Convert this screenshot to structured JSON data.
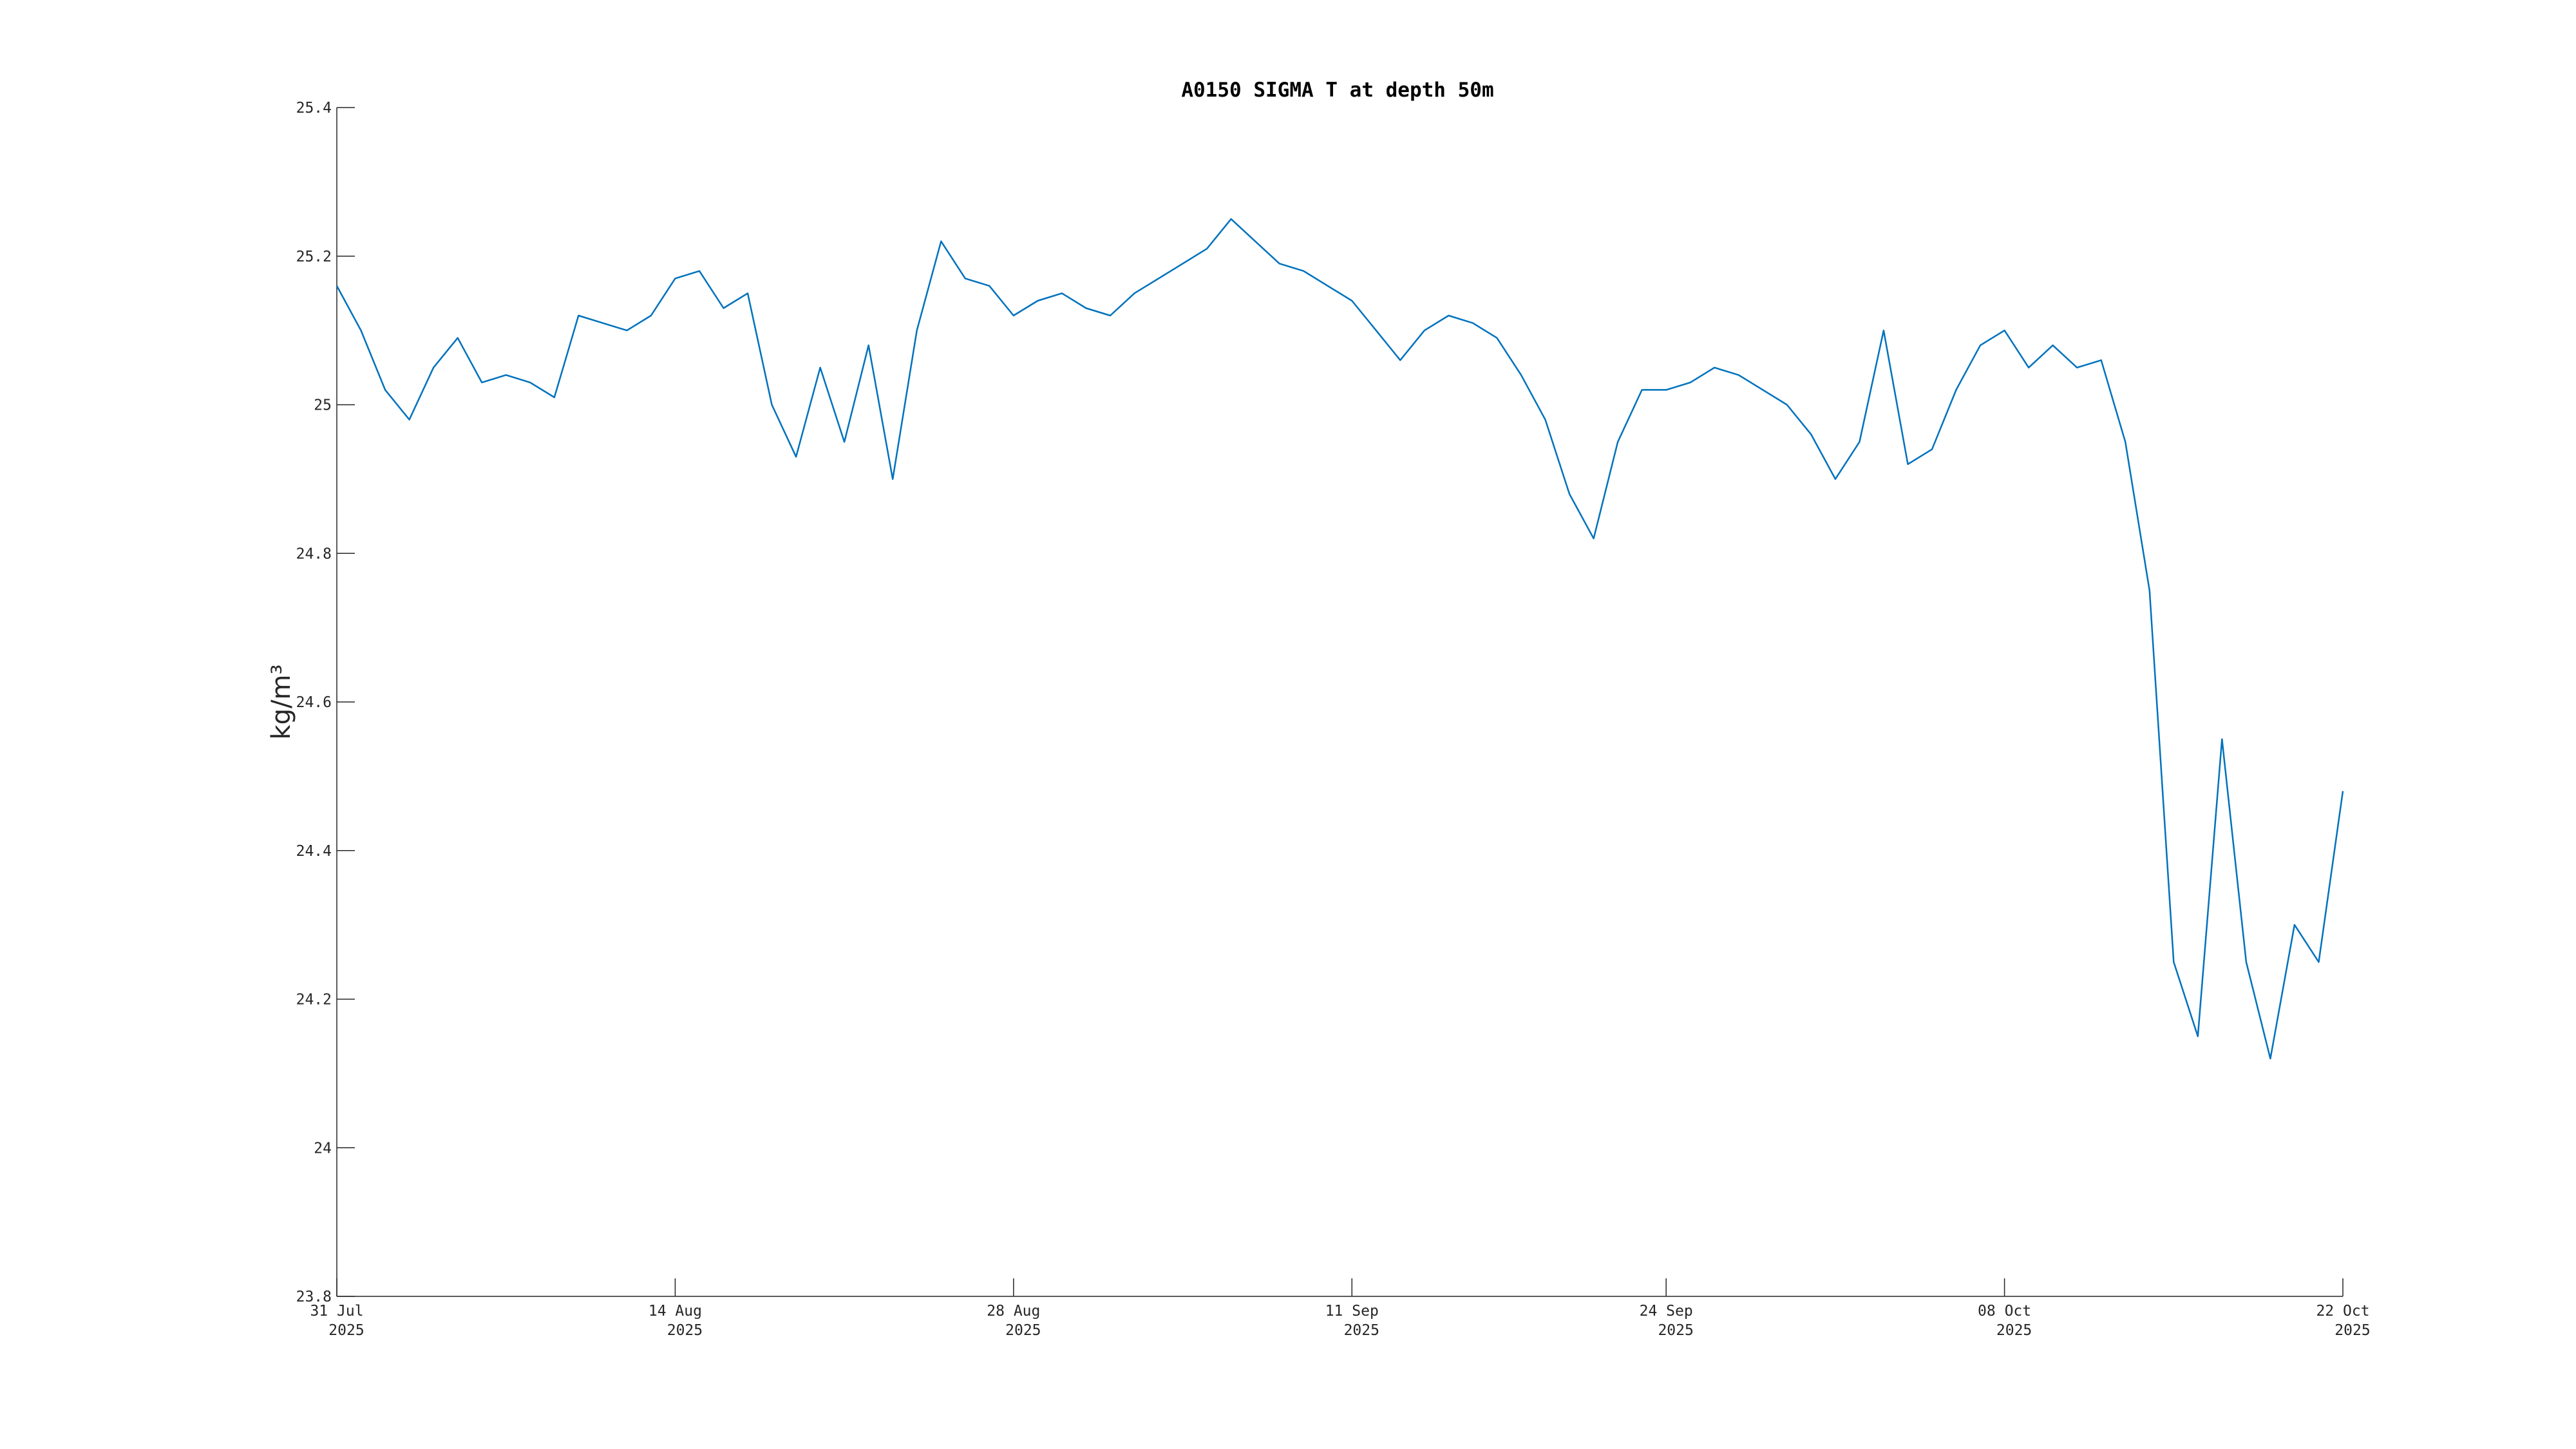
{
  "chart_data": {
    "type": "line",
    "title": "A0150 SIGMA T at depth 50m",
    "y_label": "kg/m³",
    "color": "#0072bd",
    "x": [
      "2025-07-31",
      "2025-08-01",
      "2025-08-02",
      "2025-08-03",
      "2025-08-04",
      "2025-08-05",
      "2025-08-06",
      "2025-08-07",
      "2025-08-08",
      "2025-08-09",
      "2025-08-10",
      "2025-08-11",
      "2025-08-12",
      "2025-08-13",
      "2025-08-14",
      "2025-08-15",
      "2025-08-16",
      "2025-08-17",
      "2025-08-18",
      "2025-08-19",
      "2025-08-20",
      "2025-08-21",
      "2025-08-22",
      "2025-08-23",
      "2025-08-24",
      "2025-08-25",
      "2025-08-26",
      "2025-08-27",
      "2025-08-28",
      "2025-08-29",
      "2025-08-30",
      "2025-08-31",
      "2025-09-01",
      "2025-09-02",
      "2025-09-03",
      "2025-09-04",
      "2025-09-05",
      "2025-09-06",
      "2025-09-07",
      "2025-09-08",
      "2025-09-09",
      "2025-09-10",
      "2025-09-11",
      "2025-09-12",
      "2025-09-13",
      "2025-09-14",
      "2025-09-15",
      "2025-09-16",
      "2025-09-17",
      "2025-09-18",
      "2025-09-19",
      "2025-09-20",
      "2025-09-21",
      "2025-09-22",
      "2025-09-23",
      "2025-09-24",
      "2025-09-25",
      "2025-09-26",
      "2025-09-27",
      "2025-09-28",
      "2025-09-29",
      "2025-09-30",
      "2025-10-01",
      "2025-10-02",
      "2025-10-03",
      "2025-10-04",
      "2025-10-05",
      "2025-10-06",
      "2025-10-07",
      "2025-10-08",
      "2025-10-09",
      "2025-10-10",
      "2025-10-11",
      "2025-10-12",
      "2025-10-13",
      "2025-10-14",
      "2025-10-15",
      "2025-10-16",
      "2025-10-17",
      "2025-10-18",
      "2025-10-19",
      "2025-10-20",
      "2025-10-21",
      "2025-10-22"
    ],
    "values": [
      25.16,
      25.1,
      25.02,
      24.98,
      25.05,
      25.09,
      25.03,
      25.04,
      25.03,
      25.01,
      25.12,
      25.11,
      25.1,
      25.12,
      25.17,
      25.18,
      25.13,
      25.15,
      25.0,
      24.93,
      25.05,
      24.95,
      25.08,
      24.9,
      25.1,
      25.22,
      25.17,
      25.16,
      25.12,
      25.14,
      25.15,
      25.13,
      25.12,
      25.15,
      25.17,
      25.19,
      25.21,
      25.25,
      25.22,
      25.19,
      25.18,
      25.16,
      25.14,
      25.1,
      25.06,
      25.1,
      25.12,
      25.11,
      25.09,
      25.04,
      24.98,
      24.88,
      24.82,
      24.95,
      25.02,
      25.02,
      25.03,
      25.05,
      25.04,
      25.02,
      25.0,
      24.96,
      24.9,
      24.95,
      25.1,
      24.92,
      24.94,
      25.02,
      25.08,
      25.1,
      25.05,
      25.08,
      25.05,
      25.06,
      24.95,
      24.75,
      24.25,
      24.15,
      24.55,
      24.25,
      24.12,
      24.3,
      24.25,
      24.48
    ],
    "xlim": [
      "2025-07-31",
      "2025-10-22"
    ],
    "xticks": [
      {
        "value": "2025-07-31",
        "label": "31 Jul",
        "year": "2025"
      },
      {
        "value": "2025-08-14",
        "label": "14 Aug",
        "year": "2025"
      },
      {
        "value": "2025-08-28",
        "label": "28 Aug",
        "year": "2025"
      },
      {
        "value": "2025-09-11",
        "label": "11 Sep",
        "year": "2025"
      },
      {
        "value": "2025-09-24",
        "label": "24 Sep",
        "year": "2025"
      },
      {
        "value": "2025-10-08",
        "label": "08 Oct",
        "year": "2025"
      },
      {
        "value": "2025-10-22",
        "label": "22 Oct",
        "year": "2025"
      }
    ],
    "ylim": [
      23.8,
      25.4
    ],
    "yticks": [
      23.8,
      24,
      24.2,
      24.4,
      24.6,
      24.8,
      25,
      25.2,
      25.4
    ]
  }
}
